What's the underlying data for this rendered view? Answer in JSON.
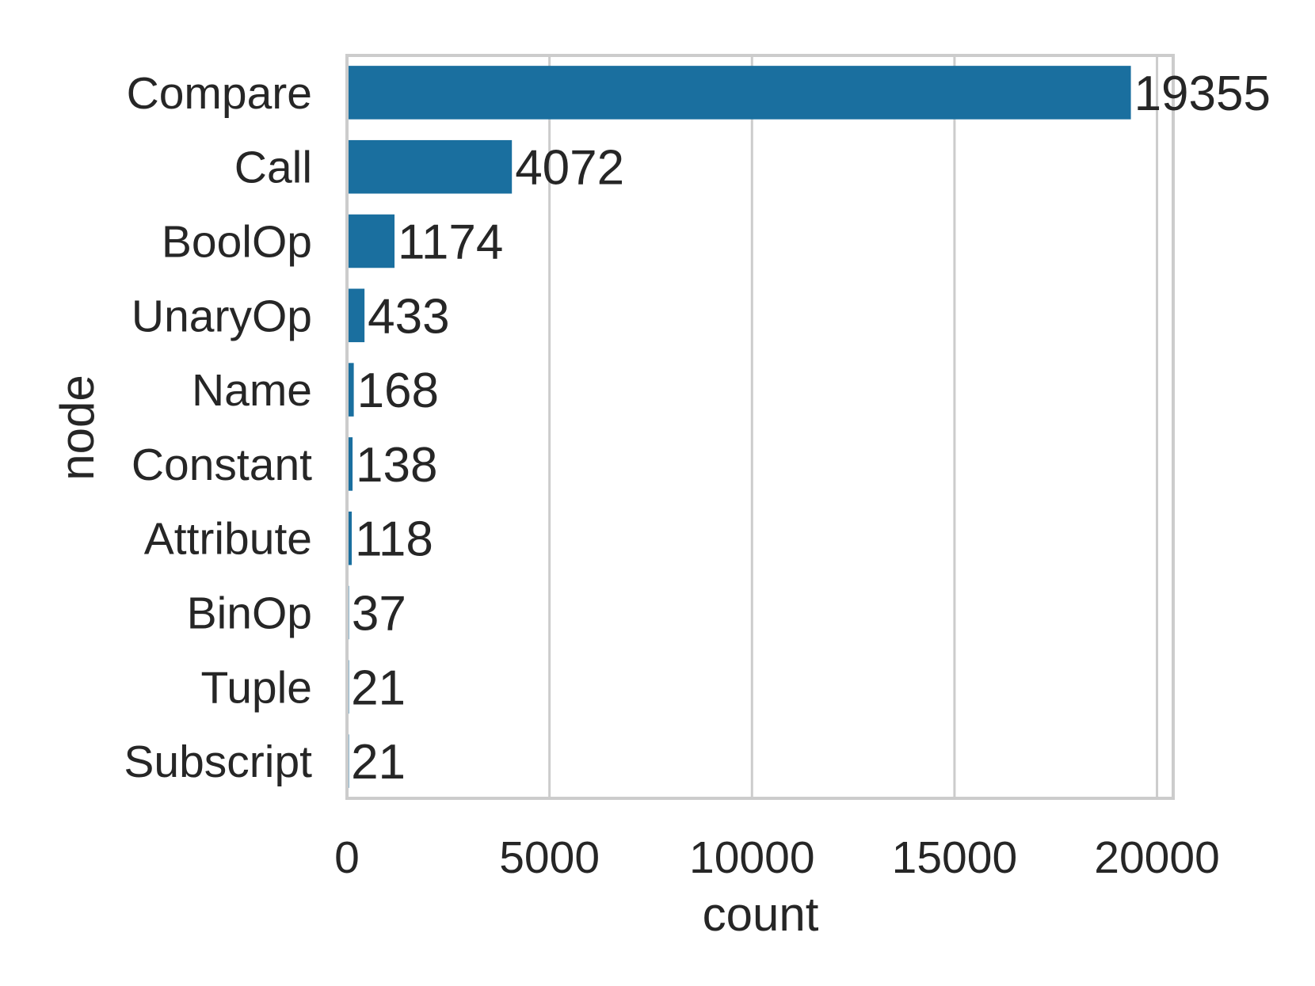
{
  "chart_data": {
    "type": "bar",
    "orientation": "horizontal",
    "categories": [
      "Compare",
      "Call",
      "BoolOp",
      "UnaryOp",
      "Name",
      "Constant",
      "Attribute",
      "BinOp",
      "Tuple",
      "Subscript"
    ],
    "values": [
      19355,
      4072,
      1174,
      433,
      168,
      138,
      118,
      37,
      21,
      21
    ],
    "data_labels": [
      "19355",
      "4072",
      "1174",
      "433",
      "168",
      "138",
      "118",
      "37",
      "21",
      "21"
    ],
    "xlabel": "count",
    "ylabel": "node",
    "xlim": [
      0,
      20400
    ],
    "xticks": [
      0,
      5000,
      10000,
      15000,
      20000
    ],
    "xtick_labels": [
      "0",
      "5000",
      "10000",
      "15000",
      "20000"
    ],
    "grid": "vertical",
    "legend": "none",
    "colors": {
      "bar": "#1a6f9f",
      "grid": "#cccccc",
      "spine": "#cccccc",
      "text": "#262626"
    }
  }
}
